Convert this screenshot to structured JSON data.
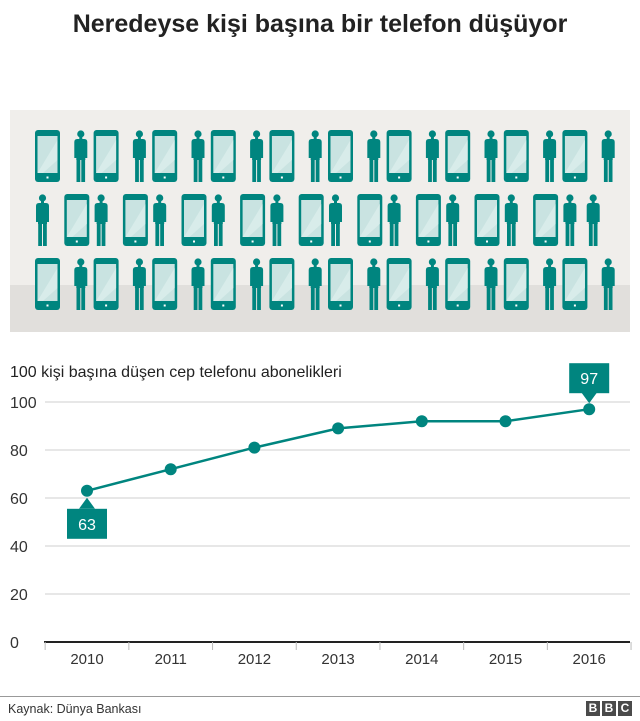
{
  "title": "Neredeyse kişi başına bir telefon düşüyor",
  "illustration": {
    "rows": 3,
    "icons": [
      "phone-icon",
      "person-icon"
    ]
  },
  "colors": {
    "accent": "#00857f",
    "screen": "#c9e3e1",
    "bg_top": "#f0eeeb",
    "bg_bottom": "#e1dfdc"
  },
  "chart_data": {
    "type": "line",
    "title": "100 kişi başına düşen cep telefonu abonelikleri",
    "categories": [
      "2010",
      "2011",
      "2012",
      "2013",
      "2014",
      "2015",
      "2016"
    ],
    "values": [
      63,
      72,
      81,
      89,
      92,
      92,
      97
    ],
    "ylim": [
      0,
      100
    ],
    "yticks": [
      0,
      20,
      40,
      60,
      80,
      100
    ],
    "grid": true,
    "annotations": [
      {
        "category": "2010",
        "label": "63",
        "position": "below"
      },
      {
        "category": "2016",
        "label": "97",
        "position": "above"
      }
    ]
  },
  "footer": {
    "source": "Kaynak: Dünya Bankası",
    "logo": [
      "B",
      "B",
      "C"
    ]
  }
}
